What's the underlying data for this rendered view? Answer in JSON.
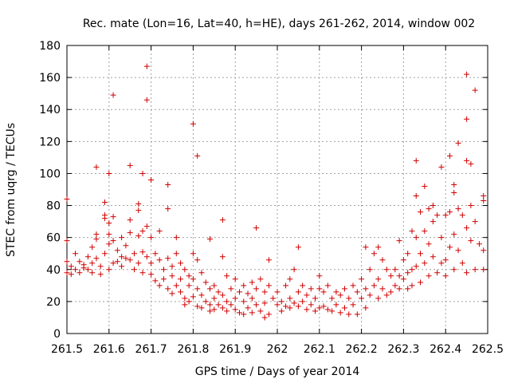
{
  "chart_data": {
    "type": "scatter",
    "title": "Rec. mate (Lon=16, Lat=40, h=HE), days 261-262, 2014, window 002",
    "xlabel": "GPS time / Days of year 2014",
    "ylabel": "STEC from uqrg / TECUs",
    "xlim": [
      261.5,
      262.5
    ],
    "ylim": [
      0,
      180
    ],
    "xticks": [
      "261.5",
      "261.6",
      "261.7",
      "261.8",
      "261.9",
      "262",
      "262.1",
      "262.2",
      "262.3",
      "262.4",
      "262.5"
    ],
    "yticks": [
      "0",
      "20",
      "40",
      "60",
      "80",
      "100",
      "120",
      "140",
      "160",
      "180"
    ],
    "grid": true,
    "marker": "plus",
    "color": "#d00000",
    "points": [
      [
        261.5,
        84
      ],
      [
        261.5,
        58
      ],
      [
        261.5,
        45
      ],
      [
        261.5,
        38
      ],
      [
        261.51,
        42
      ],
      [
        261.51,
        37
      ],
      [
        261.52,
        50
      ],
      [
        261.52,
        40
      ],
      [
        261.53,
        45
      ],
      [
        261.53,
        38
      ],
      [
        261.54,
        43
      ],
      [
        261.54,
        41
      ],
      [
        261.55,
        48
      ],
      [
        261.55,
        40
      ],
      [
        261.56,
        54
      ],
      [
        261.56,
        44
      ],
      [
        261.56,
        38
      ],
      [
        261.57,
        62
      ],
      [
        261.57,
        59
      ],
      [
        261.57,
        104
      ],
      [
        261.57,
        47
      ],
      [
        261.58,
        42
      ],
      [
        261.58,
        37
      ],
      [
        261.59,
        82
      ],
      [
        261.59,
        74
      ],
      [
        261.59,
        72
      ],
      [
        261.59,
        50
      ],
      [
        261.6,
        69
      ],
      [
        261.6,
        62
      ],
      [
        261.6,
        56
      ],
      [
        261.6,
        100
      ],
      [
        261.6,
        40
      ],
      [
        261.61,
        149
      ],
      [
        261.61,
        58
      ],
      [
        261.61,
        73
      ],
      [
        261.61,
        44
      ],
      [
        261.62,
        45
      ],
      [
        261.62,
        52
      ],
      [
        261.63,
        48
      ],
      [
        261.63,
        60
      ],
      [
        261.63,
        42
      ],
      [
        261.64,
        47
      ],
      [
        261.64,
        55
      ],
      [
        261.65,
        63
      ],
      [
        261.65,
        105
      ],
      [
        261.65,
        71
      ],
      [
        261.65,
        46
      ],
      [
        261.66,
        50
      ],
      [
        261.66,
        40
      ],
      [
        261.67,
        81
      ],
      [
        261.67,
        77
      ],
      [
        261.67,
        61
      ],
      [
        261.67,
        44
      ],
      [
        261.68,
        100
      ],
      [
        261.68,
        64
      ],
      [
        261.68,
        51
      ],
      [
        261.68,
        38
      ],
      [
        261.69,
        167
      ],
      [
        261.69,
        146
      ],
      [
        261.69,
        67
      ],
      [
        261.69,
        48
      ],
      [
        261.7,
        44
      ],
      [
        261.7,
        96
      ],
      [
        261.7,
        60
      ],
      [
        261.7,
        37
      ],
      [
        261.71,
        50
      ],
      [
        261.71,
        33
      ],
      [
        261.72,
        64
      ],
      [
        261.72,
        46
      ],
      [
        261.72,
        30
      ],
      [
        261.73,
        40
      ],
      [
        261.73,
        34
      ],
      [
        261.74,
        93
      ],
      [
        261.74,
        78
      ],
      [
        261.74,
        47
      ],
      [
        261.74,
        28
      ],
      [
        261.75,
        42
      ],
      [
        261.75,
        36
      ],
      [
        261.75,
        25
      ],
      [
        261.76,
        60
      ],
      [
        261.76,
        50
      ],
      [
        261.76,
        30
      ],
      [
        261.77,
        44
      ],
      [
        261.77,
        34
      ],
      [
        261.77,
        26
      ],
      [
        261.78,
        40
      ],
      [
        261.78,
        22
      ],
      [
        261.78,
        18
      ],
      [
        261.79,
        36
      ],
      [
        261.79,
        30
      ],
      [
        261.79,
        20
      ],
      [
        261.8,
        131
      ],
      [
        261.8,
        50
      ],
      [
        261.8,
        34
      ],
      [
        261.8,
        23
      ],
      [
        261.81,
        111
      ],
      [
        261.81,
        46
      ],
      [
        261.81,
        28
      ],
      [
        261.81,
        17
      ],
      [
        261.82,
        38
      ],
      [
        261.82,
        24
      ],
      [
        261.82,
        16
      ],
      [
        261.83,
        32
      ],
      [
        261.83,
        20
      ],
      [
        261.84,
        59
      ],
      [
        261.84,
        28
      ],
      [
        261.84,
        18
      ],
      [
        261.84,
        14
      ],
      [
        261.85,
        30
      ],
      [
        261.85,
        22
      ],
      [
        261.85,
        15
      ],
      [
        261.86,
        26
      ],
      [
        261.86,
        18
      ],
      [
        261.87,
        71
      ],
      [
        261.87,
        48
      ],
      [
        261.87,
        24
      ],
      [
        261.87,
        16
      ],
      [
        261.88,
        36
      ],
      [
        261.88,
        20
      ],
      [
        261.88,
        14
      ],
      [
        261.89,
        28
      ],
      [
        261.89,
        18
      ],
      [
        261.9,
        34
      ],
      [
        261.9,
        22
      ],
      [
        261.9,
        15
      ],
      [
        261.91,
        26
      ],
      [
        261.91,
        13
      ],
      [
        261.92,
        30
      ],
      [
        261.92,
        20
      ],
      [
        261.92,
        12
      ],
      [
        261.93,
        25
      ],
      [
        261.93,
        16
      ],
      [
        261.94,
        32
      ],
      [
        261.94,
        22
      ],
      [
        261.94,
        13
      ],
      [
        261.95,
        66
      ],
      [
        261.95,
        28
      ],
      [
        261.95,
        18
      ],
      [
        261.96,
        34
      ],
      [
        261.96,
        14
      ],
      [
        261.97,
        26
      ],
      [
        261.97,
        19
      ],
      [
        261.97,
        10
      ],
      [
        261.98,
        46
      ],
      [
        261.98,
        30
      ],
      [
        261.98,
        12
      ],
      [
        261.99,
        22
      ],
      [
        262.0,
        26
      ],
      [
        262.0,
        18
      ],
      [
        262.01,
        20
      ],
      [
        262.01,
        14
      ],
      [
        262.02,
        30
      ],
      [
        262.02,
        17
      ],
      [
        262.03,
        34
      ],
      [
        262.03,
        22
      ],
      [
        262.03,
        16
      ],
      [
        262.04,
        40
      ],
      [
        262.04,
        19
      ],
      [
        262.05,
        54
      ],
      [
        262.05,
        26
      ],
      [
        262.05,
        17
      ],
      [
        262.06,
        30
      ],
      [
        262.06,
        20
      ],
      [
        262.07,
        24
      ],
      [
        262.07,
        15
      ],
      [
        262.08,
        28
      ],
      [
        262.08,
        18
      ],
      [
        262.09,
        22
      ],
      [
        262.09,
        14
      ],
      [
        262.1,
        36
      ],
      [
        262.1,
        28
      ],
      [
        262.1,
        16
      ],
      [
        262.11,
        26
      ],
      [
        262.11,
        17
      ],
      [
        262.12,
        30
      ],
      [
        262.12,
        15
      ],
      [
        262.13,
        22
      ],
      [
        262.13,
        14
      ],
      [
        262.14,
        26
      ],
      [
        262.14,
        18
      ],
      [
        262.15,
        24
      ],
      [
        262.15,
        13
      ],
      [
        262.16,
        28
      ],
      [
        262.16,
        16
      ],
      [
        262.17,
        22
      ],
      [
        262.17,
        12
      ],
      [
        262.18,
        30
      ],
      [
        262.18,
        18
      ],
      [
        262.19,
        26
      ],
      [
        262.19,
        12
      ],
      [
        262.2,
        34
      ],
      [
        262.2,
        22
      ],
      [
        262.21,
        54
      ],
      [
        262.21,
        28
      ],
      [
        262.21,
        16
      ],
      [
        262.22,
        40
      ],
      [
        262.22,
        24
      ],
      [
        262.23,
        50
      ],
      [
        262.23,
        30
      ],
      [
        262.24,
        54
      ],
      [
        262.24,
        34
      ],
      [
        262.24,
        22
      ],
      [
        262.25,
        46
      ],
      [
        262.25,
        28
      ],
      [
        262.26,
        40
      ],
      [
        262.26,
        24
      ],
      [
        262.27,
        36
      ],
      [
        262.27,
        26
      ],
      [
        262.28,
        40
      ],
      [
        262.28,
        30
      ],
      [
        262.29,
        58
      ],
      [
        262.29,
        36
      ],
      [
        262.29,
        28
      ],
      [
        262.3,
        46
      ],
      [
        262.3,
        34
      ],
      [
        262.31,
        50
      ],
      [
        262.31,
        38
      ],
      [
        262.31,
        28
      ],
      [
        262.32,
        64
      ],
      [
        262.32,
        40
      ],
      [
        262.32,
        30
      ],
      [
        262.33,
        108
      ],
      [
        262.33,
        86
      ],
      [
        262.33,
        60
      ],
      [
        262.33,
        42
      ],
      [
        262.34,
        76
      ],
      [
        262.34,
        50
      ],
      [
        262.34,
        32
      ],
      [
        262.35,
        92
      ],
      [
        262.35,
        64
      ],
      [
        262.35,
        44
      ],
      [
        262.36,
        78
      ],
      [
        262.36,
        56
      ],
      [
        262.36,
        36
      ],
      [
        262.37,
        80
      ],
      [
        262.37,
        70
      ],
      [
        262.37,
        48
      ],
      [
        262.38,
        74
      ],
      [
        262.38,
        38
      ],
      [
        262.39,
        104
      ],
      [
        262.39,
        60
      ],
      [
        262.39,
        44
      ],
      [
        262.4,
        74
      ],
      [
        262.4,
        46
      ],
      [
        262.4,
        36
      ],
      [
        262.41,
        111
      ],
      [
        262.41,
        76
      ],
      [
        262.41,
        54
      ],
      [
        262.42,
        93
      ],
      [
        262.42,
        88
      ],
      [
        262.42,
        62
      ],
      [
        262.42,
        40
      ],
      [
        262.43,
        119
      ],
      [
        262.43,
        78
      ],
      [
        262.43,
        52
      ],
      [
        262.44,
        74
      ],
      [
        262.44,
        44
      ],
      [
        262.45,
        162
      ],
      [
        262.45,
        134
      ],
      [
        262.45,
        108
      ],
      [
        262.45,
        66
      ],
      [
        262.45,
        38
      ],
      [
        262.46,
        106
      ],
      [
        262.46,
        80
      ],
      [
        262.46,
        58
      ],
      [
        262.47,
        152
      ],
      [
        262.47,
        70
      ],
      [
        262.47,
        40
      ],
      [
        262.48,
        56
      ],
      [
        262.49,
        86
      ],
      [
        262.49,
        83
      ],
      [
        262.49,
        52
      ],
      [
        262.49,
        40
      ]
    ]
  }
}
